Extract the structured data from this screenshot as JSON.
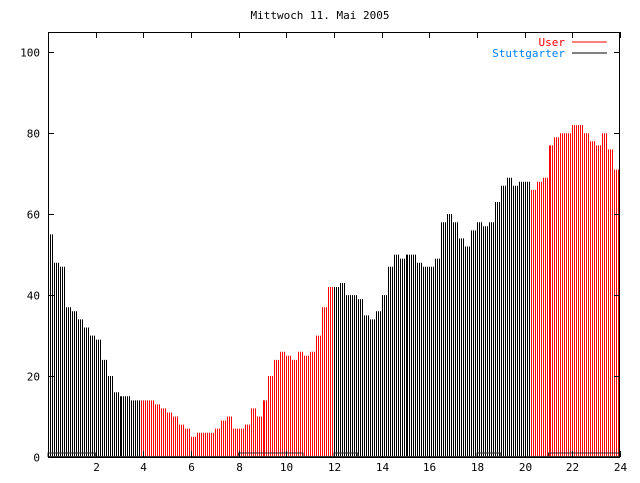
{
  "chart_data": {
    "type": "bar",
    "title": "Mittwoch 11. Mai 2005",
    "xlim": [
      0,
      24
    ],
    "ylim": [
      0,
      105
    ],
    "xticks": [
      "2",
      "4",
      "6",
      "8",
      "10",
      "12",
      "14",
      "16",
      "18",
      "20",
      "22",
      "24"
    ],
    "yticks": [
      "0",
      "20",
      "40",
      "60",
      "80",
      "100"
    ],
    "grid": false,
    "legend_position": "top-right",
    "interval_hours": 0.25,
    "series": [
      {
        "name": "User",
        "color": "#ff0000",
        "ranges": [
          [
            3.9,
            12.0
          ],
          [
            20.2,
            24
          ]
        ]
      },
      {
        "name": "Stuttgarter",
        "color": "#000000",
        "legend_text_color": "#0080ff"
      }
    ],
    "values": [
      55,
      48,
      47,
      37,
      36,
      34,
      32,
      30,
      29,
      24,
      20,
      16,
      15,
      15,
      14,
      14,
      14,
      14,
      13,
      12,
      11,
      10,
      8,
      7,
      5,
      6,
      6,
      6,
      7,
      9,
      10,
      7,
      7,
      8,
      12,
      10,
      14,
      20,
      24,
      26,
      25,
      24,
      26,
      25,
      26,
      30,
      37,
      42,
      42,
      43,
      40,
      40,
      39,
      35,
      34,
      36,
      40,
      47,
      50,
      49,
      50,
      50,
      48,
      47,
      47,
      49,
      58,
      60,
      58,
      54,
      52,
      56,
      58,
      57,
      58,
      63,
      67,
      69,
      67,
      68,
      68,
      66,
      68,
      69,
      77,
      79,
      80,
      80,
      82,
      82,
      80,
      78,
      77,
      80,
      76,
      71
    ],
    "baseline_step": {
      "value": 1,
      "on_ranges": [
        [
          0,
          2
        ],
        [
          8,
          10.7
        ],
        [
          12,
          13
        ],
        [
          18,
          19
        ],
        [
          21,
          24
        ]
      ]
    }
  }
}
